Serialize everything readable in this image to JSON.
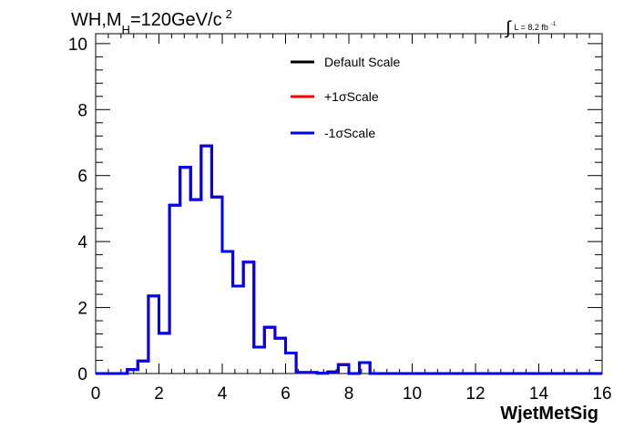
{
  "header": {
    "title_main": "WH,M",
    "title_sub": "H",
    "title_tail": "=120GeV/c",
    "title_sup": "2",
    "lumi_integral": "∫",
    "lumi_text": "L = 8.2 fb",
    "lumi_sup": "-1"
  },
  "chart_data": {
    "type": "line",
    "title": "WH,MH=120GeV/c2",
    "xlabel": "WjetMetSig",
    "ylabel": "",
    "xlim": [
      0,
      16
    ],
    "ylim": [
      0,
      10.3
    ],
    "x_ticks": [
      "0",
      "2",
      "4",
      "6",
      "8",
      "10",
      "12",
      "14",
      "16"
    ],
    "y_ticks": [
      "0",
      "2",
      "4",
      "6",
      "8",
      "10"
    ],
    "bin_width": 0.33333,
    "bin_edges_start": 0,
    "series": [
      {
        "name": "Default Scale",
        "color": "#000000",
        "values": [
          0,
          0,
          0,
          0.12,
          0.38,
          2.35,
          1.22,
          5.1,
          6.25,
          5.27,
          6.9,
          5.35,
          3.7,
          2.65,
          3.38,
          0.8,
          1.4,
          1.07,
          0.62,
          0.03,
          0.03,
          0.01,
          0.05,
          0.27,
          0,
          0.33,
          0,
          0,
          0,
          0,
          0,
          0,
          0,
          0,
          0,
          0,
          0,
          0,
          0,
          0,
          0,
          0,
          0,
          0,
          0,
          0,
          0,
          0
        ]
      },
      {
        "name": "+1σScale",
        "color": "#ff0000",
        "values": [
          0,
          0,
          0,
          0.12,
          0.38,
          2.35,
          1.22,
          5.1,
          6.25,
          5.27,
          6.9,
          5.35,
          3.7,
          2.65,
          3.38,
          0.8,
          1.4,
          1.07,
          0.62,
          0.03,
          0.03,
          0.01,
          0.05,
          0.27,
          0,
          0.33,
          0,
          0,
          0,
          0,
          0,
          0,
          0,
          0,
          0,
          0,
          0,
          0,
          0,
          0,
          0,
          0,
          0,
          0,
          0,
          0,
          0,
          0
        ]
      },
      {
        "name": "-1σScale",
        "color": "#0000ee",
        "values": [
          0,
          0,
          0,
          0.12,
          0.38,
          2.35,
          1.22,
          5.1,
          6.25,
          5.27,
          6.9,
          5.35,
          3.7,
          2.65,
          3.38,
          0.8,
          1.4,
          1.07,
          0.62,
          0.03,
          0.03,
          0.01,
          0.05,
          0.27,
          0,
          0.33,
          0,
          0,
          0,
          0,
          0,
          0,
          0,
          0,
          0,
          0,
          0,
          0,
          0,
          0,
          0,
          0,
          0,
          0,
          0,
          0,
          0,
          0
        ]
      }
    ],
    "legend_position": "top-center",
    "grid": false
  }
}
